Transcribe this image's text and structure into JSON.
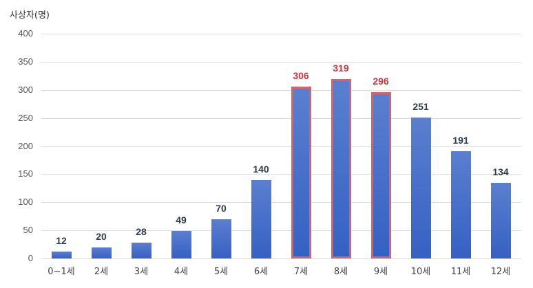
{
  "chart_data": {
    "type": "bar",
    "title": "",
    "xlabel": "",
    "ylabel": "사상자(명)",
    "ylim": [
      0,
      400
    ],
    "yticks": [
      0,
      50,
      100,
      150,
      200,
      250,
      300,
      350,
      400
    ],
    "grid": true,
    "legend": null,
    "categories": [
      "0~1세",
      "2세",
      "3세",
      "4세",
      "5세",
      "6세",
      "7세",
      "8세",
      "9세",
      "10세",
      "11세",
      "12세"
    ],
    "values": [
      12,
      20,
      28,
      49,
      70,
      140,
      306,
      319,
      296,
      251,
      191,
      134
    ],
    "highlighted": [
      "7세",
      "8세",
      "9세"
    ],
    "colors": {
      "bar": "#3f68c8",
      "highlight_border": "#d9626a",
      "highlight_label": "#d0343c",
      "label": "#2d3a4a"
    }
  }
}
